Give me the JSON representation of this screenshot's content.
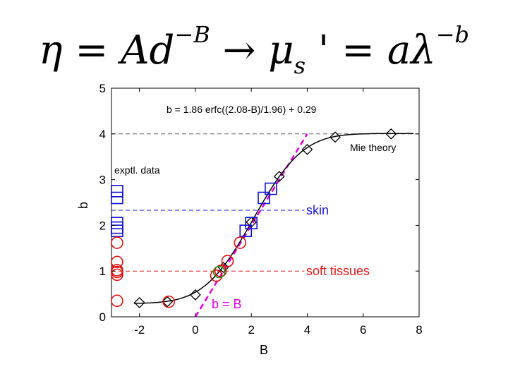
{
  "slide": {
    "equation": {
      "eta": "η",
      "eq1": " = ",
      "A": "A",
      "d": "d",
      "exp1": "−B",
      "arrow": " → ",
      "mu": "μ",
      "sub_s": "s",
      "prime": " '",
      "eq2": " = ",
      "a": "a",
      "lambda": "λ",
      "exp2": "−b"
    }
  },
  "chart_data": {
    "type": "scatter",
    "xlabel": "B",
    "ylabel": "b",
    "xlim": [
      -3,
      8
    ],
    "ylim": [
      0,
      5
    ],
    "xticks": [
      -2,
      0,
      2,
      4,
      6,
      8
    ],
    "yticks": [
      0,
      1,
      2,
      3,
      4,
      5
    ],
    "grid": false,
    "annotations": {
      "formula": "b = 1.86 erfc((2.08-B)/1.96) + 0.29",
      "mie_label": "Mie theory",
      "exptl_label": "exptl. data",
      "skin_label": "skin",
      "soft_label": "soft tissues",
      "bB_label": "b = B"
    },
    "reference_lines": [
      {
        "name": "mie",
        "y": 4.0,
        "x_from": -3,
        "x_to": 8,
        "color": "#606060"
      },
      {
        "name": "skin",
        "y": 2.33,
        "x_from": -3,
        "x_to": 3.9,
        "color": "#1a1adc"
      },
      {
        "name": "soft",
        "y": 1.0,
        "x_from": -3,
        "x_to": 3.9,
        "color": "#dc1a1a"
      }
    ],
    "identity_line": {
      "x": [
        0,
        4
      ],
      "color": "#e000e0"
    },
    "fit_curve": {
      "A": 1.86,
      "B0": 2.08,
      "C": 1.96,
      "offset": 0.29,
      "x_from": -2.2,
      "x_to": 7.8
    },
    "series": [
      {
        "marker": "diamond",
        "color": "#000000",
        "x": [
          -2,
          -1,
          0,
          1,
          2,
          3,
          4,
          5,
          7
        ],
        "y": [
          0.31,
          0.33,
          0.48,
          1.08,
          2.07,
          3.07,
          3.66,
          3.93,
          4.0
        ]
      },
      {
        "marker": "square",
        "color": "#1010d0",
        "x": [
          -2.8,
          -2.8,
          -2.8,
          -2.8,
          -2.8,
          1.8,
          2.0,
          2.45,
          2.7
        ],
        "y": [
          2.75,
          2.6,
          2.05,
          1.95,
          1.88,
          1.88,
          2.05,
          2.6,
          2.8
        ]
      },
      {
        "marker": "circle",
        "color": "#e01010",
        "x": [
          -2.8,
          -2.8,
          -2.8,
          -2.8,
          -2.8,
          -2.8,
          -0.95,
          0.75,
          0.9,
          1.15,
          1.6
        ],
        "y": [
          1.62,
          1.2,
          1.02,
          0.98,
          0.92,
          0.35,
          0.33,
          0.9,
          1.0,
          1.22,
          1.62
        ]
      },
      {
        "marker": "circle",
        "color": "#1c9a1c",
        "x": [
          0.85
        ],
        "y": [
          0.98
        ]
      }
    ]
  }
}
